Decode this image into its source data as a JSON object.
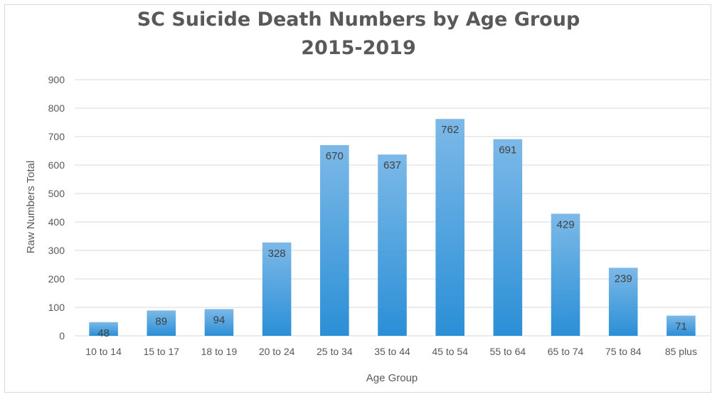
{
  "chart_data": {
    "type": "bar",
    "title": "SC Suicide Death Numbers by Age Group",
    "subtitle": "2015-2019",
    "xlabel": "Age Group",
    "ylabel": "Raw Numbers Total",
    "categories": [
      "10 to 14",
      "15 to 17",
      "18 to 19",
      "20 to 24",
      "25 to 34",
      "35 to 44",
      "45 to 54",
      "55 to 64",
      "65 to 74",
      "75 to 84",
      "85 plus"
    ],
    "values": [
      48,
      89,
      94,
      328,
      670,
      637,
      762,
      691,
      429,
      239,
      71
    ],
    "ylim": [
      0,
      900
    ],
    "yticks": [
      0,
      100,
      200,
      300,
      400,
      500,
      600,
      700,
      800,
      900
    ],
    "grid": true,
    "legend": "none",
    "colors": {
      "bar_top": "#7cb9e8",
      "bar_bottom": "#2b8fd6",
      "grid": "#d9d9d9",
      "text": "#595959"
    }
  }
}
